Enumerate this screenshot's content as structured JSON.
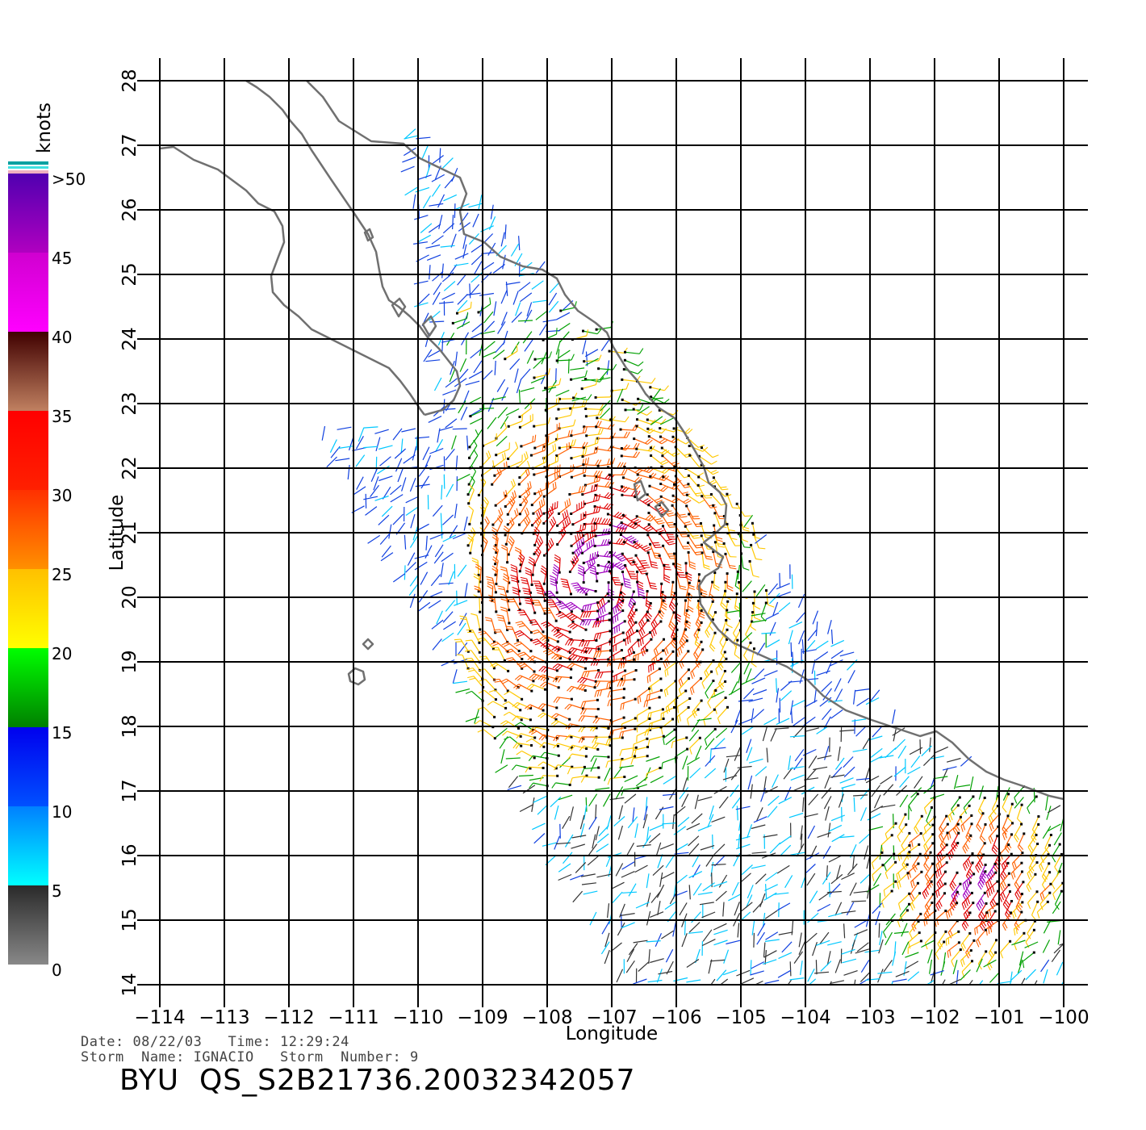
{
  "map": {
    "xlabel": "Longitude",
    "ylabel": "Latitude",
    "lon_ticks": [
      "-114",
      "-113",
      "-112",
      "-111",
      "-110",
      "-109",
      "-108",
      "-107",
      "-106",
      "-105",
      "-104",
      "-103",
      "-102",
      "-101",
      "-100"
    ],
    "lat_ticks": [
      "14",
      "15",
      "16",
      "17",
      "18",
      "19",
      "20",
      "21",
      "22",
      "23",
      "24",
      "25",
      "26",
      "27",
      "28"
    ],
    "lon_range": [
      -114,
      -100
    ],
    "lat_range": [
      14,
      28
    ],
    "grid": true,
    "coastline_color": "#707070",
    "gridline_color": "#000000"
  },
  "colorbar": {
    "unit_label": "knots",
    "labels": [
      ">50",
      "45",
      "40",
      "35",
      "30",
      "25",
      "20",
      "15",
      "10",
      "5",
      "0"
    ],
    "bands": [
      {
        "from": 0,
        "to": 5,
        "colors": [
          "#888888",
          "#2a2a2a"
        ]
      },
      {
        "from": 5,
        "to": 10,
        "colors": [
          "#00ffff",
          "#0080ff"
        ]
      },
      {
        "from": 10,
        "to": 15,
        "colors": [
          "#0050ff",
          "#0000ee"
        ]
      },
      {
        "from": 15,
        "to": 20,
        "colors": [
          "#008000",
          "#00ff00"
        ]
      },
      {
        "from": 20,
        "to": 25,
        "colors": [
          "#ffff00",
          "#ffc000"
        ]
      },
      {
        "from": 25,
        "to": 30,
        "colors": [
          "#ff9000",
          "#ff3000"
        ]
      },
      {
        "from": 30,
        "to": 35,
        "colors": [
          "#ff2000",
          "#ff0000"
        ]
      },
      {
        "from": 35,
        "to": 40,
        "colors": [
          "#c08060",
          "#400000"
        ]
      },
      {
        "from": 40,
        "to": 45,
        "colors": [
          "#ff00ff",
          "#d000d0"
        ]
      },
      {
        "from": 45,
        "to": 50,
        "colors": [
          "#b000c0",
          "#5000b0"
        ]
      }
    ]
  },
  "wind_colors": {
    "calm": "#333333",
    "light": "#00c8ff",
    "moderate": "#1040e0",
    "fresh": "#00a000",
    "strong": "#ffc800",
    "gale": "#ff6000",
    "storm": "#e00000",
    "extreme": "#a000c0"
  },
  "metadata": {
    "date_label": "Date:",
    "date": "08/22/03",
    "time_label": "Time:",
    "time": "12:29:24",
    "storm_name_label": "Storm  Name:",
    "storm_name": "IGNACIO",
    "storm_number_label": "Storm  Number:",
    "storm_number": "9"
  },
  "footer_title": "BYU  QS_S2B21736.20032342057"
}
